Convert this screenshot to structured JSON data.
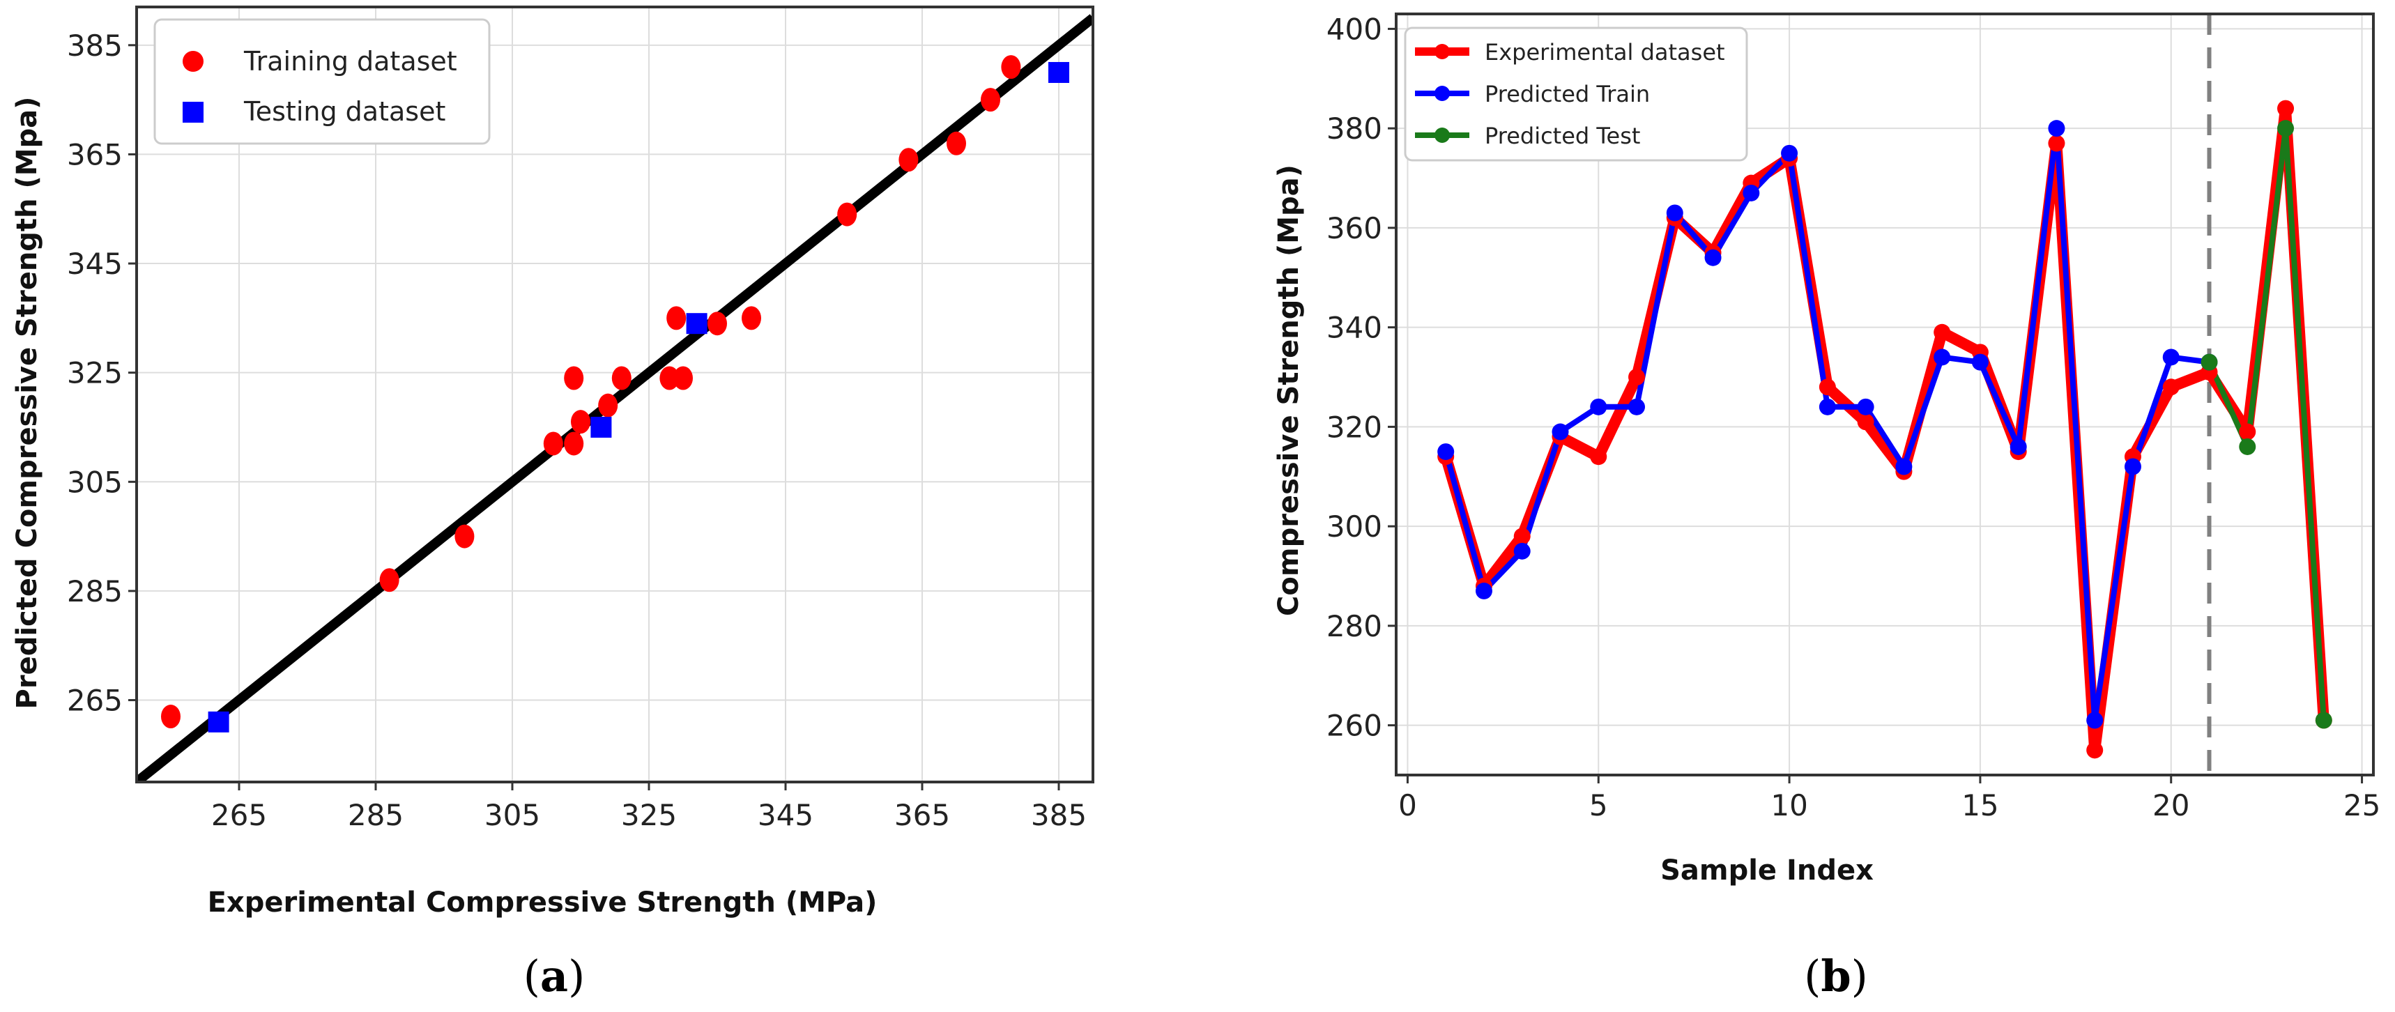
{
  "chart_data": [
    {
      "panel": "a",
      "type": "scatter",
      "caption_open": "(",
      "caption_letter": "a",
      "caption_close": ")",
      "xlabel": "Experimental Compressive Strength (MPa)",
      "ylabel": "Predicted Compressive Strength (Mpa)",
      "xlim": [
        250,
        390
      ],
      "ylim": [
        250,
        392
      ],
      "xticks": [
        "265",
        "285",
        "305",
        "325",
        "345",
        "365",
        "385"
      ],
      "yticks": [
        "265",
        "285",
        "305",
        "325",
        "345",
        "365",
        "385"
      ],
      "grid": true,
      "legend_position": "top-left",
      "fit_line": {
        "x": [
          248,
          390
        ],
        "y": [
          248,
          390
        ]
      },
      "series": [
        {
          "name": "Training dataset",
          "marker": "circle",
          "color": "#ff0000",
          "x": [
            255,
            287,
            298,
            311,
            314,
            314,
            315,
            319,
            321,
            328,
            329,
            330,
            335,
            340,
            354,
            363,
            370,
            375,
            378
          ],
          "y": [
            262,
            287,
            295,
            312,
            312,
            324,
            316,
            319,
            324,
            324,
            335,
            324,
            334,
            335,
            354,
            364,
            367,
            375,
            381
          ]
        },
        {
          "name": "Testing dataset",
          "marker": "square",
          "color": "#0000ff",
          "x": [
            262,
            318,
            332,
            385
          ],
          "y": [
            261,
            315,
            334,
            380
          ]
        }
      ]
    },
    {
      "panel": "b",
      "type": "line",
      "caption_open": "(",
      "caption_letter": "b",
      "caption_close": ")",
      "xlabel": "Sample Index",
      "ylabel": "Compressive Strength (Mpa)",
      "xlim": [
        -0.3,
        25.3
      ],
      "ylim": [
        250,
        403
      ],
      "xticks": [
        "0",
        "5",
        "10",
        "15",
        "20",
        "25"
      ],
      "yticks": [
        "260",
        "280",
        "300",
        "320",
        "340",
        "360",
        "380",
        "400"
      ],
      "grid": true,
      "legend_position": "top-left",
      "split_at_x": 21,
      "series": [
        {
          "name": "Experimental dataset",
          "color": "#ff0000",
          "x": [
            1,
            2,
            3,
            4,
            5,
            6,
            7,
            8,
            9,
            10,
            11,
            12,
            13,
            14,
            15,
            16,
            17,
            18,
            19,
            20,
            21,
            22,
            23,
            24
          ],
          "y": [
            314,
            288,
            298,
            318,
            314,
            330,
            362,
            355,
            369,
            374,
            328,
            321,
            311,
            339,
            335,
            315,
            377,
            255,
            314,
            328,
            331,
            319,
            384,
            261
          ]
        },
        {
          "name": "Predicted Train",
          "color": "#0000ff",
          "x": [
            1,
            2,
            3,
            4,
            5,
            6,
            7,
            8,
            9,
            10,
            11,
            12,
            13,
            14,
            15,
            16,
            17,
            18,
            19,
            20,
            21
          ],
          "y": [
            315,
            287,
            295,
            319,
            324,
            324,
            363,
            354,
            367,
            375,
            324,
            324,
            312,
            334,
            333,
            316,
            380,
            261,
            312,
            334,
            333
          ]
        },
        {
          "name": "Predicted Test",
          "color": "#1a7a1a",
          "x": [
            21,
            22,
            23,
            24
          ],
          "y": [
            333,
            316,
            380,
            261
          ]
        }
      ]
    }
  ]
}
